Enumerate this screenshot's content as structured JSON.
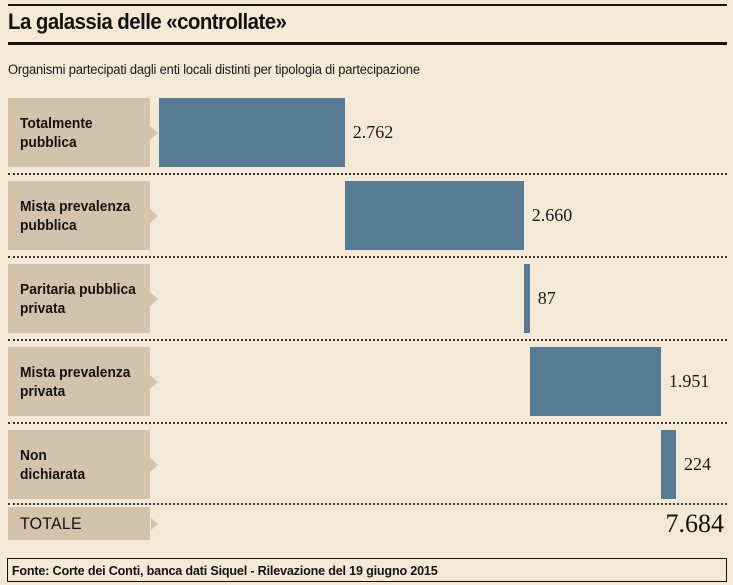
{
  "header": {
    "title": "La galassia delle «controllate»"
  },
  "subtitle": "Organismi partecipati dagli enti locali distinti per tipologia di partecipazione",
  "chart_data": {
    "type": "bar",
    "variant": "horizontal-waterfall",
    "title": "La galassia delle «controllate»",
    "subtitle": "Organismi partecipati dagli enti locali distinti per tipologia di partecipazione",
    "categories": [
      "Totalmente pubblica",
      "Mista prevalenza pubblica",
      "Paritaria pubblica privata",
      "Mista prevalenza privata",
      "Non dichiarata"
    ],
    "values": [
      2762,
      2660,
      87,
      1951,
      224
    ],
    "value_labels": [
      "2.762",
      "2.660",
      "87",
      "1.951",
      "224"
    ],
    "total": 7684,
    "total_label": "7.684",
    "xlim": [
      0,
      7684
    ],
    "grid": false,
    "legend": "none",
    "colors": {
      "bar": "#577b93",
      "label_box": "#d3c2ac",
      "background": "#f4e8d7",
      "text": "#15130f"
    }
  },
  "rows": [
    {
      "label_lines": [
        "Totalmente",
        "pubblica"
      ],
      "value_text": "2.762"
    },
    {
      "label_lines": [
        "Mista prevalenza",
        "pubblica"
      ],
      "value_text": "2.660"
    },
    {
      "label_lines": [
        "Paritaria pubblica",
        "privata"
      ],
      "value_text": "87"
    },
    {
      "label_lines": [
        "Mista prevalenza",
        "privata"
      ],
      "value_text": "1.951"
    },
    {
      "label_lines": [
        "Non",
        "dichiarata"
      ],
      "value_text": "224"
    }
  ],
  "total_row": {
    "label": "TOTALE",
    "value_text": "7.684"
  },
  "footer": {
    "source": "Fonte: Corte dei Conti, banca dati Siquel - Rilevazione del 19 giugno 2015"
  }
}
